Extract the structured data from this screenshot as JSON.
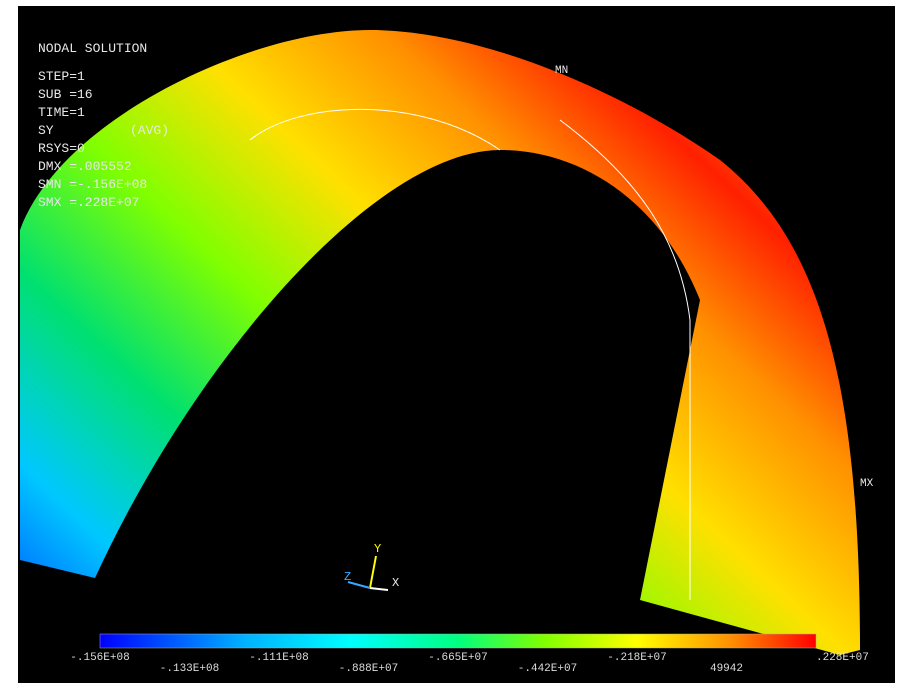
{
  "info": {
    "title": "NODAL SOLUTION",
    "lines": [
      "STEP=1",
      "SUB =16",
      "TIME=1",
      "SY",
      "(AVG)",
      "RSYS=0",
      "DMX =.005552",
      "SMN =-.156E+08",
      "SMX =.228E+07"
    ]
  },
  "markers": {
    "min": "MN",
    "max": "MX"
  },
  "axes": {
    "x": "X",
    "y": "Y",
    "z": "Z"
  },
  "legend": {
    "labels": [
      "-.156E+08",
      "-.133E+08",
      "-.111E+08",
      "-.888E+07",
      "-.665E+07",
      "-.442E+07",
      "-.218E+07",
      "49942",
      ".228E+07"
    ]
  }
}
